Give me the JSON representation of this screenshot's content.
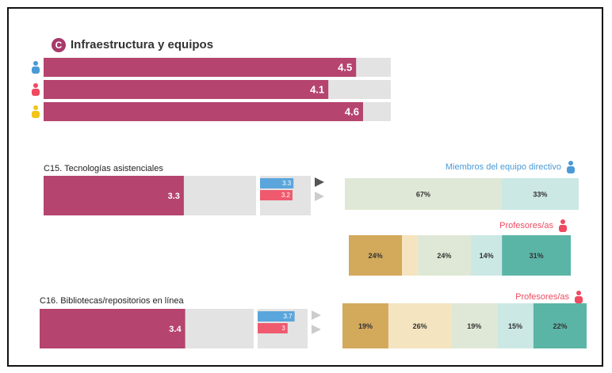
{
  "chart_data": [
    {
      "type": "hbar",
      "badge": "C",
      "title": "Infraestructura y equipos",
      "categories": [
        null,
        null,
        null
      ],
      "values": [
        4.5,
        4.1,
        4.6
      ],
      "color": "#b5446e",
      "xlim": [
        0,
        5
      ]
    },
    {
      "type": "hbar",
      "title": "C15. Tecnologías asistenciales",
      "categories": [
        null
      ],
      "values": [
        3.3
      ],
      "color": "#b5446e",
      "xlim": [
        0,
        5
      ]
    },
    {
      "type": "compare",
      "categories": [
        null,
        null
      ],
      "values": [
        3.3,
        3.2
      ],
      "colors": [
        "#5aa6dc",
        "#ef5a6f"
      ],
      "xlim": [
        0,
        5
      ]
    },
    {
      "type": "stacked",
      "title": "Miembros del equipo directivo",
      "title_color": "#4a9ad6",
      "values": [
        67,
        33
      ],
      "value_labels": [
        "67%",
        "33%"
      ],
      "colors": [
        "#dfe8d6",
        "#cbe8e4"
      ]
    },
    {
      "type": "stacked",
      "title": "Profesores/as",
      "title_color": "#ef4a5f",
      "values": [
        24,
        7,
        24,
        14,
        31
      ],
      "value_labels": [
        "24%",
        null,
        "24%",
        "14%",
        "31%"
      ],
      "colors": [
        "#d3a95b",
        "#f4e4bf",
        "#dfe8d6",
        "#cbe8e4",
        "#5bb5a6"
      ]
    },
    {
      "type": "hbar",
      "title": "C16. Bibliotecas/repositorios en línea",
      "categories": [
        null
      ],
      "values": [
        3.4
      ],
      "color": "#b5446e",
      "xlim": [
        0,
        5
      ]
    },
    {
      "type": "compare",
      "categories": [
        null,
        null
      ],
      "values": [
        3.7,
        3
      ],
      "colors": [
        "#5aa6dc",
        "#ef5a6f"
      ],
      "xlim": [
        0,
        5
      ]
    },
    {
      "type": "stacked",
      "title": "Profesores/as",
      "title_color": "#ef4a5f",
      "values": [
        19,
        26,
        19,
        15,
        22
      ],
      "value_labels": [
        "19%",
        "26%",
        "19%",
        "15%",
        "22%"
      ],
      "colors": [
        "#d3a95b",
        "#f4e4bf",
        "#dfe8d6",
        "#cbe8e4",
        "#5bb5a6"
      ]
    }
  ]
}
